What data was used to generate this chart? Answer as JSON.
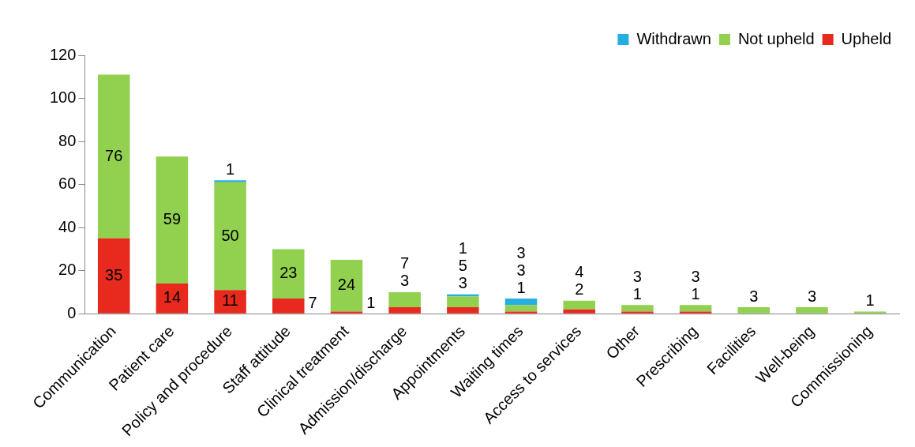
{
  "chart_data": {
    "type": "bar",
    "stacked": true,
    "categories": [
      "Communication",
      "Patient care",
      "Policy and procedure",
      "Staff attitude",
      "Clinical treatment",
      "Admission/discharge",
      "Appointments",
      "Waiting times",
      "Access to services",
      "Other",
      "Prescribing",
      "Facilities",
      "Well-being",
      "Commissioning"
    ],
    "series": [
      {
        "name": "Upheld",
        "color": "#e82a1e",
        "values": [
          35,
          14,
          11,
          7,
          1,
          3,
          3,
          1,
          2,
          1,
          1,
          null,
          null,
          null
        ]
      },
      {
        "name": "Not upheld",
        "color": "#92d050",
        "values": [
          76,
          59,
          50,
          23,
          24,
          7,
          5,
          3,
          4,
          3,
          3,
          3,
          3,
          1
        ]
      },
      {
        "name": "Withdrawn",
        "color": "#27aee0",
        "values": [
          null,
          null,
          1,
          null,
          null,
          null,
          1,
          3,
          null,
          null,
          null,
          null,
          null,
          null
        ]
      }
    ],
    "ylim": [
      0,
      120
    ],
    "yticks": [
      0,
      20,
      40,
      60,
      80,
      100,
      120
    ],
    "grid": false,
    "legend": "top right",
    "data_labels": true
  }
}
